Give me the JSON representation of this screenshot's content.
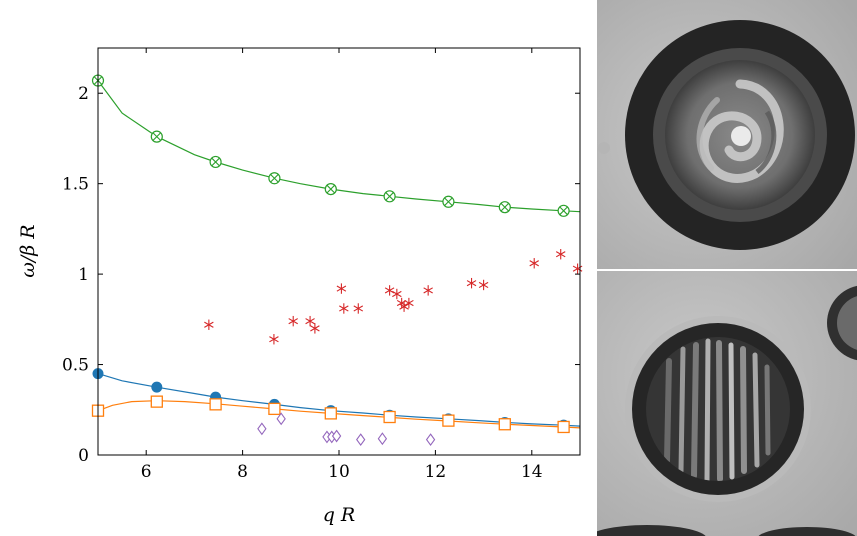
{
  "chart_data": {
    "type": "scatter",
    "xlabel": "q R",
    "ylabel": "ω/β R",
    "xlim": [
      5,
      15
    ],
    "ylim": [
      0,
      2.25
    ],
    "xticks": [
      "6",
      "8",
      "10",
      "12",
      "14"
    ],
    "yticks": [
      "0",
      "0.5",
      "1",
      "1.5",
      "2"
    ],
    "grid": false,
    "legend": "none",
    "series": [
      {
        "marker": "circled-x",
        "color": "#2ca02c",
        "x": [
          5.0,
          6.22,
          7.44,
          8.66,
          9.83,
          11.05,
          12.27,
          13.44,
          14.66
        ],
        "y": [
          2.07,
          1.76,
          1.62,
          1.53,
          1.47,
          1.43,
          1.4,
          1.37,
          1.35
        ],
        "fit": {
          "x": [
            5.0,
            5.5,
            6.22,
            7.0,
            7.44,
            8.0,
            8.66,
            9.2,
            9.83,
            10.5,
            11.05,
            11.6,
            12.27,
            12.9,
            13.44,
            14.0,
            14.66,
            15.0
          ],
          "y": [
            2.07,
            1.89,
            1.76,
            1.66,
            1.62,
            1.575,
            1.53,
            1.5,
            1.47,
            1.445,
            1.43,
            1.415,
            1.4,
            1.385,
            1.37,
            1.36,
            1.35,
            1.345
          ]
        }
      },
      {
        "marker": "filled-circle",
        "color": "#1f77b4",
        "x": [
          5.0,
          6.22,
          7.44,
          8.66,
          9.83,
          11.05,
          12.27,
          13.44,
          14.66
        ],
        "y": [
          0.45,
          0.375,
          0.32,
          0.28,
          0.245,
          0.22,
          0.2,
          0.18,
          0.165
        ],
        "fit": {
          "x": [
            5.0,
            5.5,
            6.22,
            7.0,
            7.44,
            8.0,
            8.66,
            9.2,
            9.83,
            10.5,
            11.05,
            11.6,
            12.27,
            12.9,
            13.44,
            14.0,
            14.66,
            15.0
          ],
          "y": [
            0.45,
            0.41,
            0.375,
            0.34,
            0.32,
            0.3,
            0.28,
            0.262,
            0.245,
            0.232,
            0.22,
            0.21,
            0.2,
            0.19,
            0.18,
            0.172,
            0.165,
            0.16
          ]
        }
      },
      {
        "marker": "open-square",
        "color": "#ff7f0e",
        "x": [
          5.0,
          6.22,
          7.44,
          8.66,
          9.83,
          11.05,
          12.27,
          13.44,
          14.66
        ],
        "y": [
          0.245,
          0.295,
          0.28,
          0.255,
          0.23,
          0.21,
          0.19,
          0.17,
          0.155
        ],
        "fit": {
          "x": [
            5.0,
            5.3,
            5.7,
            6.22,
            6.8,
            7.44,
            8.0,
            8.66,
            9.2,
            9.83,
            10.5,
            11.05,
            11.6,
            12.27,
            12.9,
            13.44,
            14.0,
            14.66,
            15.0
          ],
          "y": [
            0.245,
            0.275,
            0.295,
            0.3,
            0.295,
            0.283,
            0.27,
            0.255,
            0.242,
            0.23,
            0.218,
            0.208,
            0.198,
            0.188,
            0.178,
            0.17,
            0.163,
            0.155,
            0.15
          ]
        }
      },
      {
        "marker": "star",
        "color": "#d62728",
        "x": [
          7.3,
          8.65,
          9.05,
          9.4,
          9.5,
          10.05,
          10.1,
          10.4,
          11.05,
          11.2,
          11.3,
          11.35,
          11.45,
          11.85,
          12.75,
          13.0,
          14.05,
          14.6,
          14.95
        ],
        "y": [
          0.72,
          0.64,
          0.74,
          0.74,
          0.7,
          0.92,
          0.81,
          0.81,
          0.91,
          0.89,
          0.84,
          0.82,
          0.84,
          0.91,
          0.95,
          0.94,
          1.06,
          1.11,
          1.03
        ]
      },
      {
        "marker": "open-diamond",
        "color": "#9467bd",
        "x": [
          8.4,
          8.8,
          9.75,
          9.85,
          9.95,
          10.45,
          10.9,
          11.9
        ],
        "y": [
          0.145,
          0.2,
          0.1,
          0.1,
          0.105,
          0.085,
          0.09,
          0.085
        ]
      }
    ]
  },
  "images": {
    "top": "drop-spiral-micrograph",
    "bottom": "drop-striped-micrograph"
  }
}
